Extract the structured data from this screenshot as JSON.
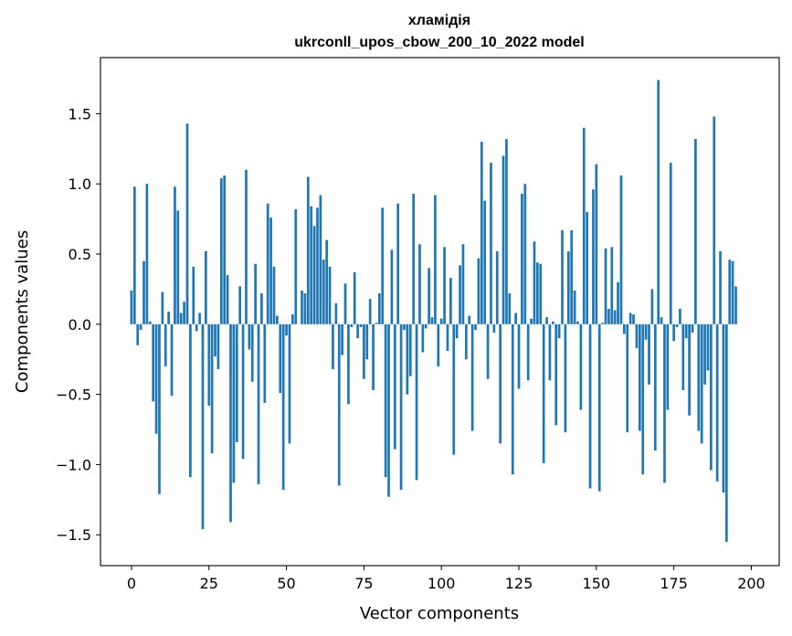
{
  "chart_data": {
    "type": "bar",
    "title": "хламідія",
    "subtitle": "ukrconll_upos_cbow_200_10_2022 model",
    "xlabel": "Vector components",
    "ylabel": "Components values",
    "xlim": [
      -10,
      209
    ],
    "ylim": [
      -1.72,
      1.9
    ],
    "xticks": [
      0,
      25,
      50,
      75,
      100,
      125,
      150,
      175,
      200
    ],
    "yticks": [
      -1.5,
      -1.0,
      -0.5,
      0.0,
      0.5,
      1.0,
      1.5
    ],
    "ytick_labels": [
      "−1.5",
      "−1.0",
      "−0.5",
      "0.0",
      "0.5",
      "1.0",
      "1.5"
    ],
    "bar_color": "#1f77b4",
    "values": [
      0.24,
      0.98,
      -0.15,
      -0.04,
      0.45,
      1.0,
      0.02,
      -0.55,
      -0.78,
      -1.21,
      0.23,
      -0.3,
      0.09,
      -0.51,
      0.98,
      0.81,
      0.08,
      0.16,
      1.43,
      -1.09,
      0.41,
      -0.05,
      0.08,
      -1.46,
      0.52,
      -0.58,
      -0.92,
      -0.23,
      -0.32,
      1.04,
      1.06,
      0.35,
      -1.41,
      -1.13,
      -0.84,
      0.27,
      -0.96,
      1.1,
      -0.18,
      -0.41,
      0.43,
      -1.14,
      0.22,
      -0.56,
      0.86,
      0.76,
      0.41,
      0.06,
      -0.49,
      -1.18,
      -0.08,
      -0.85,
      0.07,
      0.82,
      0.0,
      0.24,
      0.22,
      1.05,
      0.84,
      0.7,
      0.83,
      0.92,
      0.46,
      0.6,
      0.41,
      -0.32,
      0.15,
      -1.15,
      -0.22,
      0.29,
      -0.57,
      -0.02,
      0.37,
      -0.1,
      -0.02,
      -0.39,
      -0.25,
      0.18,
      -0.47,
      0.01,
      0.22,
      0.83,
      -1.09,
      -1.23,
      0.53,
      -0.89,
      0.86,
      -1.18,
      -0.04,
      -0.5,
      -0.37,
      0.93,
      -1.11,
      0.57,
      -0.2,
      -0.03,
      0.4,
      0.05,
      0.92,
      -0.3,
      0.04,
      0.55,
      -0.19,
      0.33,
      -0.93,
      -0.1,
      0.42,
      0.57,
      -0.25,
      0.06,
      -0.76,
      -0.04,
      0.47,
      1.3,
      0.88,
      -0.39,
      1.15,
      -0.06,
      0.52,
      -0.85,
      1.2,
      1.32,
      0.22,
      -1.07,
      0.08,
      -0.46,
      0.93,
      1.0,
      -0.4,
      0.04,
      0.59,
      0.44,
      0.43,
      -0.99,
      0.05,
      -0.4,
      0.02,
      -0.72,
      -0.1,
      0.67,
      -0.77,
      0.52,
      0.67,
      0.24,
      0.02,
      -0.61,
      1.4,
      0.8,
      -1.17,
      0.96,
      1.14,
      -1.19,
      0.01,
      0.54,
      0.11,
      0.55,
      0.1,
      0.3,
      1.06,
      -0.07,
      -0.77,
      0.08,
      0.07,
      -0.17,
      -0.76,
      -1.07,
      -0.11,
      -0.43,
      0.25,
      -0.9,
      1.74,
      0.05,
      -1.13,
      -0.61,
      1.15,
      -0.12,
      -0.02,
      0.11,
      -0.47,
      -0.1,
      -0.65,
      -0.06,
      1.32,
      -0.76,
      -0.85,
      -0.43,
      -0.33,
      -1.04,
      1.48,
      -1.12,
      0.52,
      -1.2,
      -1.55,
      0.46,
      0.45,
      0.27
    ]
  }
}
